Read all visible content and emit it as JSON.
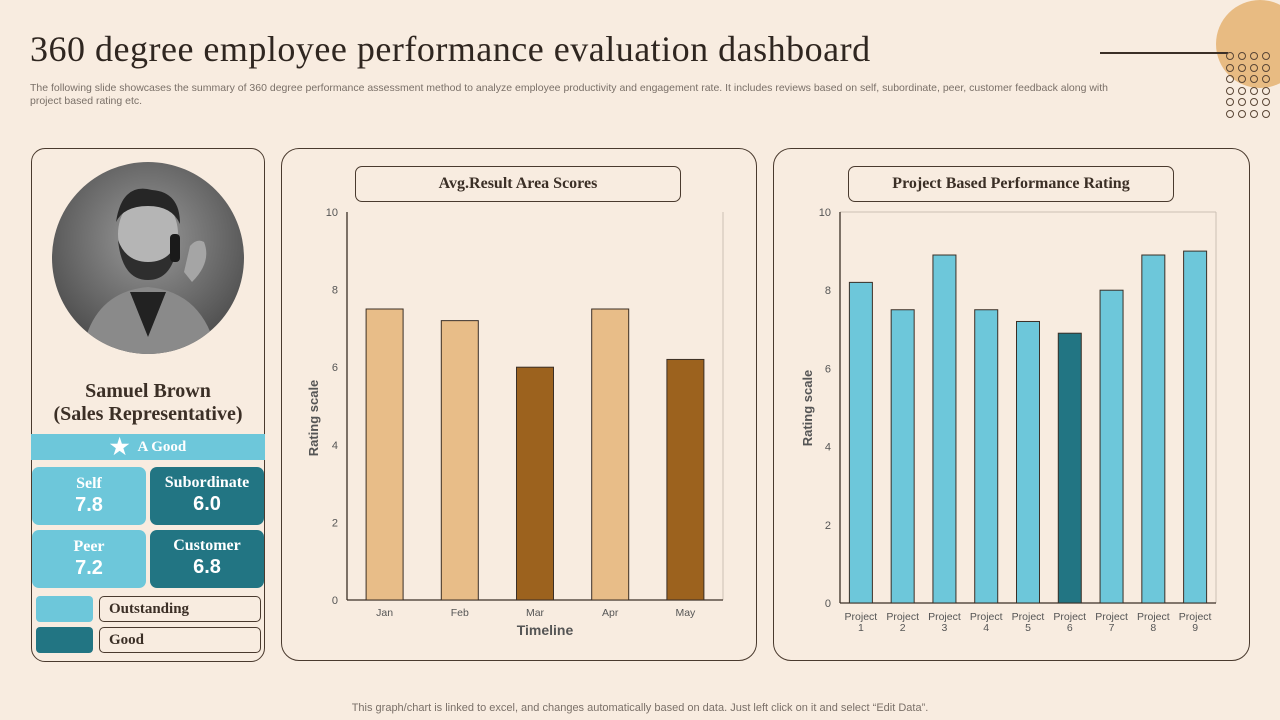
{
  "header": {
    "title": "360 degree employee performance evaluation dashboard",
    "subtitle": "The following slide showcases the summary of 360 degree performance assessment method to analyze employee productivity and engagement rate. It includes reviews based on self, subordinate, peer, customer feedback along with project based rating etc."
  },
  "profile": {
    "name": "Samuel Brown",
    "role": "(Sales Representative)",
    "rating_icon": "star-icon",
    "rating": "A Good",
    "scores": [
      {
        "label": "Self",
        "value": "7.8",
        "level": "Outstanding"
      },
      {
        "label": "Subordinate",
        "value": "6.0",
        "level": "Good"
      },
      {
        "label": "Peer",
        "value": "7.2",
        "level": "Outstanding"
      },
      {
        "label": "Customer",
        "value": "6.8",
        "level": "Good"
      }
    ],
    "legend": [
      {
        "label": "Outstanding",
        "color": "#6dc7da"
      },
      {
        "label": "Good",
        "color": "#227583"
      }
    ]
  },
  "chart_data": [
    {
      "type": "bar",
      "title": "Avg.Result Area Scores",
      "xlabel": "Timeline",
      "ylabel": "Rating scale",
      "ylim": [
        0,
        10
      ],
      "yticks": [
        "0",
        "2",
        "4",
        "6",
        "8",
        "10"
      ],
      "categories": [
        "Jan",
        "Feb",
        "Mar",
        "Apr",
        "May"
      ],
      "values": [
        7.5,
        7.2,
        6.0,
        7.5,
        6.2
      ],
      "colors": [
        "#e8bd88",
        "#e8bd88",
        "#9c621e",
        "#e8bd88",
        "#9c621e"
      ],
      "grid": false
    },
    {
      "type": "bar",
      "title": "Project Based Performance Rating",
      "xlabel": "",
      "ylabel": "Rating scale",
      "ylim": [
        0,
        10
      ],
      "yticks": [
        "0",
        "2",
        "4",
        "6",
        "8",
        "10"
      ],
      "categories": [
        "Project 1",
        "Project 2",
        "Project 3",
        "Project 4",
        "Project 5",
        "Project 6",
        "Project 7",
        "Project 8",
        "Project 9"
      ],
      "values": [
        8.2,
        7.5,
        8.9,
        7.5,
        7.2,
        6.9,
        8.0,
        8.9,
        9.0
      ],
      "colors": [
        "#6dc7da",
        "#6dc7da",
        "#6dc7da",
        "#6dc7da",
        "#6dc7da",
        "#227583",
        "#6dc7da",
        "#6dc7da",
        "#6dc7da"
      ],
      "grid": false
    }
  ],
  "footer": "This graph/chart is linked to excel, and changes automatically based on data. Just left click on it and select “Edit Data”."
}
